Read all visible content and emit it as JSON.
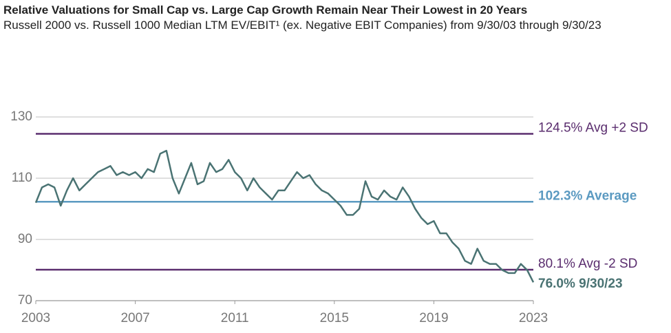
{
  "chart_data": {
    "type": "line",
    "title": "Relative Valuations for Small Cap vs. Large Cap Growth Remain Near Their Lowest in 20 Years",
    "subtitle": "Russell 2000 vs. Russell 1000 Median LTM EV/EBIT¹ (ex. Negative EBIT Companies) from 9/30/03 through 9/30/23",
    "x": [
      2003,
      2003.25,
      2003.5,
      2003.75,
      2004,
      2004.25,
      2004.5,
      2004.75,
      2005,
      2005.25,
      2005.5,
      2005.75,
      2006,
      2006.25,
      2006.5,
      2006.75,
      2007,
      2007.25,
      2007.5,
      2007.75,
      2008,
      2008.25,
      2008.5,
      2008.75,
      2009,
      2009.25,
      2009.5,
      2009.75,
      2010,
      2010.25,
      2010.5,
      2010.75,
      2011,
      2011.25,
      2011.5,
      2011.75,
      2012,
      2012.25,
      2012.5,
      2012.75,
      2013,
      2013.25,
      2013.5,
      2013.75,
      2014,
      2014.25,
      2014.5,
      2014.75,
      2015,
      2015.25,
      2015.5,
      2015.75,
      2016,
      2016.25,
      2016.5,
      2016.75,
      2017,
      2017.25,
      2017.5,
      2017.75,
      2018,
      2018.25,
      2018.5,
      2018.75,
      2019,
      2019.25,
      2019.5,
      2019.75,
      2020,
      2020.25,
      2020.5,
      2020.75,
      2021,
      2021.25,
      2021.5,
      2021.75,
      2022,
      2022.25,
      2022.5,
      2022.75,
      2023
    ],
    "series": [
      {
        "color": "#4a7373",
        "values": [
          102,
          107,
          108,
          107,
          101,
          106,
          110,
          106,
          108,
          110,
          112,
          113,
          114,
          111,
          112,
          111,
          112,
          110,
          113,
          112,
          118,
          119,
          110,
          105,
          110,
          115,
          108,
          109,
          115,
          112,
          113,
          116,
          112,
          110,
          106,
          110,
          107,
          105,
          103,
          106,
          106,
          109,
          112,
          110,
          111,
          108,
          106,
          105,
          103,
          101,
          98,
          98,
          100,
          109,
          104,
          103,
          106,
          104,
          103,
          107,
          104,
          100,
          97,
          95,
          96,
          92,
          92,
          89,
          87,
          83,
          82,
          87,
          83,
          82,
          82,
          80,
          79,
          79,
          82,
          80,
          76
        ]
      }
    ],
    "reference_lines": [
      {
        "value": 124.5,
        "label": "124.5% Avg +2 SD",
        "color": "#5a2d6e"
      },
      {
        "value": 102.3,
        "label": "102.3% Average",
        "color": "#5b9ac1"
      },
      {
        "value": 80.1,
        "label": "80.1% Avg -2 SD",
        "color": "#5a2d6e"
      }
    ],
    "annotations": [
      {
        "text": "76.0% 9/30/23",
        "color": "#4a7373"
      }
    ],
    "xlim": [
      2003,
      2023
    ],
    "xticks": [
      2003,
      2007,
      2011,
      2015,
      2019,
      2023
    ],
    "ylim": [
      70,
      130
    ],
    "yticks": [
      70,
      90,
      110,
      130
    ],
    "grid": true
  }
}
